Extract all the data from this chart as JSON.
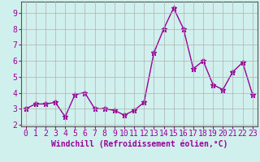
{
  "x": [
    0,
    1,
    2,
    3,
    4,
    5,
    6,
    7,
    8,
    9,
    10,
    11,
    12,
    13,
    14,
    15,
    16,
    17,
    18,
    19,
    20,
    21,
    22,
    23
  ],
  "y": [
    3.0,
    3.3,
    3.3,
    3.4,
    2.5,
    3.9,
    4.0,
    3.0,
    3.0,
    2.9,
    2.6,
    2.9,
    3.4,
    6.5,
    8.0,
    9.3,
    8.0,
    5.5,
    6.0,
    4.5,
    4.2,
    5.3,
    5.9,
    3.9
  ],
  "line_color": "#990099",
  "marker": "*",
  "marker_size": 5,
  "line_width": 1.0,
  "bg_color": "#cff0ec",
  "grid_color": "#b0b0b0",
  "xlabel": "Windchill (Refroidissement éolien,°C)",
  "xlabel_fontsize": 7,
  "ylabel_ticks": [
    2,
    3,
    4,
    5,
    6,
    7,
    8,
    9
  ],
  "xtick_labels": [
    "0",
    "1",
    "2",
    "3",
    "4",
    "5",
    "6",
    "7",
    "8",
    "9",
    "10",
    "11",
    "12",
    "13",
    "14",
    "15",
    "16",
    "17",
    "18",
    "19",
    "20",
    "21",
    "22",
    "23"
  ],
  "xlim": [
    -0.5,
    23.5
  ],
  "ylim": [
    1.9,
    9.7
  ],
  "tick_fontsize": 7,
  "axis_label_color": "#990099",
  "tick_color": "#990099",
  "spine_color": "#555555"
}
